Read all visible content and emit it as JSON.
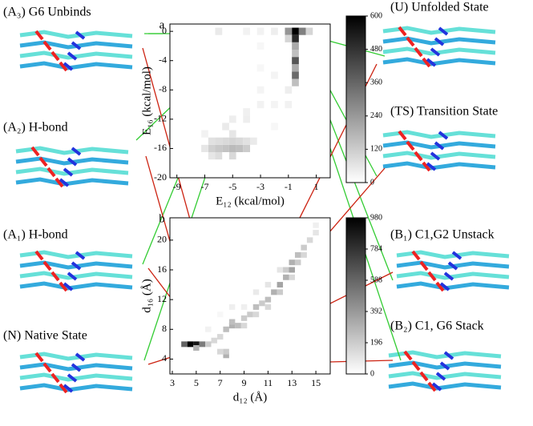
{
  "chart_data": [
    {
      "type": "heatmap",
      "panel": "a",
      "xlabel": "E₁₂ (kcal/mol)",
      "ylabel": "E₁₆ (kcal/mol)",
      "xlim": [
        -9.5,
        2
      ],
      "ylim": [
        -20,
        1
      ],
      "xticks": [
        -9,
        -7,
        -5,
        -3,
        -1,
        1
      ],
      "yticks": [
        0,
        -4,
        -8,
        -12,
        -16,
        -20
      ],
      "clim": [
        0,
        600
      ],
      "cticks": [
        0,
        120,
        240,
        360,
        480,
        600
      ],
      "points": [
        [
          -0.5,
          0,
          600
        ],
        [
          -0.5,
          -1,
          500
        ],
        [
          -0.5,
          -4,
          400
        ],
        [
          -0.5,
          -6,
          350
        ],
        [
          -0.5,
          -2,
          200
        ],
        [
          -0.5,
          -3,
          150
        ],
        [
          -0.5,
          -5,
          200
        ],
        [
          -0.5,
          -7,
          150
        ],
        [
          0,
          0,
          300
        ],
        [
          -1,
          0,
          250
        ],
        [
          0.5,
          0,
          100
        ],
        [
          -1,
          -1,
          100
        ],
        [
          -4.5,
          -16,
          150
        ],
        [
          -5,
          -16,
          160
        ],
        [
          -5.5,
          -16,
          140
        ],
        [
          -6,
          -16,
          130
        ],
        [
          -6.5,
          -16,
          110
        ],
        [
          -4,
          -16,
          120
        ],
        [
          -5,
          -15,
          100
        ],
        [
          -5.5,
          -15,
          90
        ],
        [
          -5,
          -17,
          90
        ],
        [
          -6,
          -17,
          80
        ],
        [
          -6,
          -15,
          80
        ],
        [
          -4.5,
          -15,
          90
        ],
        [
          -4,
          -15,
          70
        ],
        [
          -6.5,
          -15,
          70
        ],
        [
          -3.5,
          -15,
          50
        ],
        [
          -6.5,
          -17,
          60
        ],
        [
          -7,
          -16,
          60
        ],
        [
          -5,
          -14,
          60
        ],
        [
          -5.5,
          -13,
          50
        ],
        [
          -4,
          -12,
          40
        ],
        [
          -5,
          -12,
          40
        ],
        [
          -3,
          -10,
          30
        ],
        [
          -4,
          -11,
          35
        ],
        [
          -3,
          -8,
          25
        ],
        [
          -2,
          -6,
          25
        ],
        [
          -1,
          -8,
          40
        ],
        [
          -1,
          -10,
          30
        ],
        [
          -2,
          -10,
          25
        ],
        [
          -3,
          -5,
          20
        ],
        [
          -6,
          0,
          50
        ],
        [
          -4,
          0,
          30
        ],
        [
          -3,
          -2,
          20
        ],
        [
          -7,
          -14,
          30
        ],
        [
          -2,
          -13,
          20
        ],
        [
          -2,
          0,
          40
        ],
        [
          -3,
          0,
          30
        ]
      ]
    },
    {
      "type": "heatmap",
      "panel": "b",
      "xlabel": "d₁₂ (Å)",
      "ylabel": "d₁₆ (Å)",
      "xlim": [
        2.8,
        16.2
      ],
      "ylim": [
        2,
        23
      ],
      "xticks": [
        3,
        5,
        7,
        9,
        11,
        13,
        15
      ],
      "yticks": [
        4,
        8,
        12,
        16,
        20
      ],
      "clim": [
        0,
        980
      ],
      "cticks": [
        0,
        196,
        392,
        588,
        784,
        980
      ],
      "points": [
        [
          4.5,
          6,
          980
        ],
        [
          5,
          6,
          900
        ],
        [
          4,
          6,
          600
        ],
        [
          5.5,
          6,
          500
        ],
        [
          5,
          5.5,
          300
        ],
        [
          6,
          6,
          200
        ],
        [
          6.5,
          6.5,
          150
        ],
        [
          7,
          7,
          150
        ],
        [
          7.5,
          8,
          250
        ],
        [
          8,
          8.5,
          300
        ],
        [
          8.5,
          8.5,
          250
        ],
        [
          7.5,
          4.5,
          300
        ],
        [
          7.5,
          5,
          200
        ],
        [
          7,
          5,
          150
        ],
        [
          8,
          9,
          250
        ],
        [
          9,
          9.5,
          200
        ],
        [
          9.5,
          10,
          200
        ],
        [
          10,
          11,
          250
        ],
        [
          10.5,
          11.5,
          200
        ],
        [
          11,
          12,
          250
        ],
        [
          11.5,
          13,
          300
        ],
        [
          12,
          14,
          350
        ],
        [
          12.5,
          15,
          300
        ],
        [
          13,
          16,
          350
        ],
        [
          13,
          17,
          300
        ],
        [
          13.5,
          18,
          250
        ],
        [
          14,
          19,
          200
        ],
        [
          14.5,
          20,
          150
        ],
        [
          15,
          21,
          100
        ],
        [
          15,
          22,
          60
        ],
        [
          12,
          13,
          200
        ],
        [
          11,
          11,
          150
        ],
        [
          10,
          10,
          150
        ],
        [
          9,
          8.5,
          150
        ],
        [
          13.5,
          17,
          200
        ],
        [
          12.5,
          16,
          200
        ],
        [
          14,
          18,
          150
        ],
        [
          7,
          10,
          30
        ],
        [
          6,
          8,
          50
        ],
        [
          8,
          11,
          60
        ],
        [
          9,
          11,
          60
        ],
        [
          10,
          13,
          80
        ],
        [
          11,
          14,
          100
        ],
        [
          12,
          16,
          100
        ],
        [
          13,
          15,
          150
        ]
      ]
    }
  ],
  "structures": [
    "(A₃) G6 Unbinds",
    "(A₂) H-bond",
    "(A₁) H-bond",
    "(N)  Native State",
    "(U) Unfolded State",
    "(TS) Transition State",
    "(B₁) C1,G2 Unstack",
    "(B₂) C1, G6 Stack"
  ]
}
